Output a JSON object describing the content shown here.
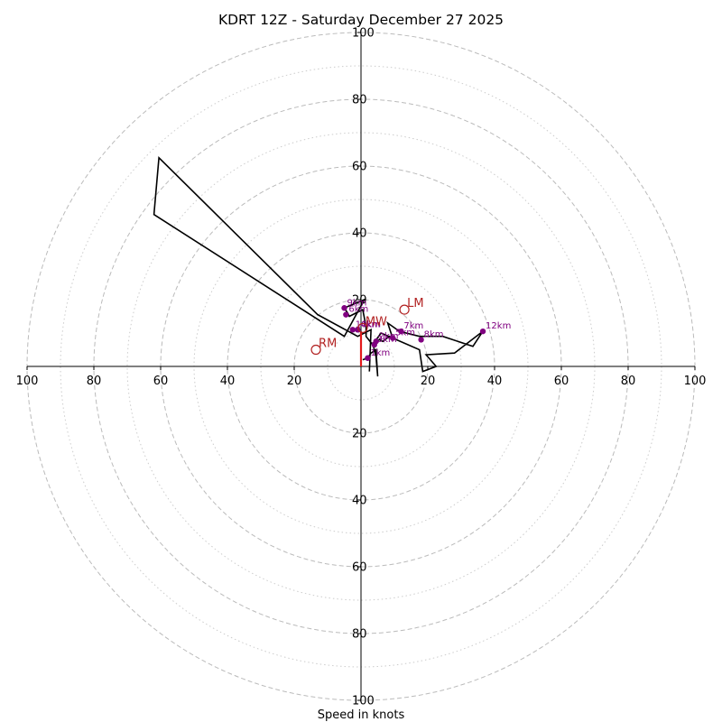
{
  "chart_data": {
    "type": "hodograph",
    "title": "KDRT 12Z - Saturday December 27 2025",
    "xlabel": "Speed in knots",
    "max_speed": 100,
    "major_rings": [
      20,
      40,
      60,
      80,
      100
    ],
    "minor_rings": [
      10,
      30,
      50,
      70,
      90
    ],
    "tick_labels": {
      "x_left": [
        "100",
        "80",
        "60",
        "40",
        "20"
      ],
      "x_right": [
        "20",
        "40",
        "60",
        "80",
        "100"
      ],
      "y_top": [
        "100",
        "80",
        "60",
        "40",
        "20"
      ],
      "y_bottom": [
        "20",
        "40",
        "60",
        "80",
        "100"
      ]
    },
    "colors": {
      "trace": "#000000",
      "height_markers": "#800080",
      "motion_markers": "#b22222",
      "mean_wind_vector": "#e31a1c",
      "major_rings": "#bbbbbb",
      "minor_rings": "#cccccc"
    },
    "hodograph_trace_uv": [
      [
        0.5,
        2.0
      ],
      [
        2.0,
        2.5
      ],
      [
        3.0,
        4.0
      ],
      [
        4.5,
        5.0
      ],
      [
        5.0,
        -3.0
      ],
      [
        4.5,
        3.0
      ],
      [
        3.5,
        7.0
      ],
      [
        5.5,
        8.0
      ],
      [
        6.5,
        7.5
      ],
      [
        8.5,
        9.0
      ],
      [
        9.5,
        8.5
      ],
      [
        8.0,
        13.0
      ],
      [
        11.5,
        10.5
      ],
      [
        17.5,
        9.0
      ],
      [
        24.5,
        9.0
      ],
      [
        33.5,
        6.0
      ],
      [
        36.5,
        10.5
      ],
      [
        28.0,
        4.0
      ],
      [
        19.5,
        3.5
      ],
      [
        22.5,
        0.0
      ],
      [
        18.5,
        -1.5
      ],
      [
        17.5,
        5.0
      ],
      [
        6.0,
        10.0
      ],
      [
        3.5,
        6.5
      ],
      [
        1.5,
        9.0
      ],
      [
        1.5,
        12.0
      ],
      [
        0.5,
        17.0
      ],
      [
        -3.5,
        15.0
      ],
      [
        -4.0,
        16.0
      ],
      [
        -5.0,
        17.5
      ],
      [
        1.0,
        20.0
      ],
      [
        -5.0,
        9.0
      ],
      [
        -62.0,
        45.5
      ],
      [
        -60.5,
        62.5
      ],
      [
        -13.0,
        15.5
      ],
      [
        -1.0,
        9.0
      ],
      [
        3.0,
        11.0
      ],
      [
        2.5,
        -1.5
      ]
    ],
    "height_markers": [
      {
        "label": "1km",
        "u": 2.0,
        "v": 2.5
      },
      {
        "label": "2km",
        "u": 4.5,
        "v": 7.5
      },
      {
        "label": "3km",
        "u": 4.0,
        "v": 6.5
      },
      {
        "label": "4km",
        "u": -1.0,
        "v": 11.0
      },
      {
        "label": "5km",
        "u": 9.5,
        "v": 8.5
      },
      {
        "label": "6km",
        "u": -4.5,
        "v": 15.5
      },
      {
        "label": "7km",
        "u": 12.0,
        "v": 10.5
      },
      {
        "label": "8km",
        "u": 18.0,
        "v": 8.0
      },
      {
        "label": "9km",
        "u": -5.0,
        "v": 17.5
      },
      {
        "label": "10km",
        "u": -2.5,
        "v": 11.0
      },
      {
        "label": "12km",
        "u": 36.5,
        "v": 10.5
      }
    ],
    "storm_motion": [
      {
        "label": "RM",
        "u": -13.5,
        "v": 5.0
      },
      {
        "label": "LM",
        "u": 13.0,
        "v": 17.0
      },
      {
        "label": "MW",
        "u": 0.5,
        "v": 11.5
      }
    ],
    "mean_wind_vector_uv": [
      [
        0.0,
        0.0
      ],
      [
        0.0,
        10.5
      ]
    ]
  }
}
